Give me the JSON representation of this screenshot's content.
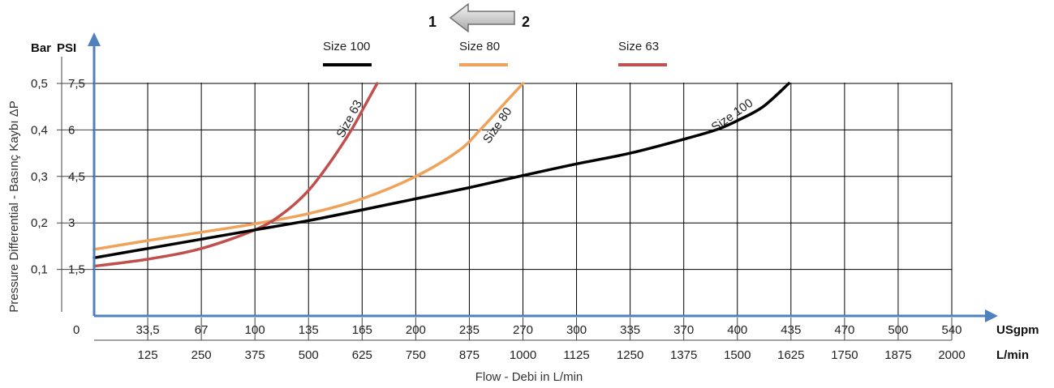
{
  "chart_data": {
    "type": "line",
    "title": "",
    "xlabel": "Flow - Debi  in L/min",
    "ylabel": "Pressure Differential - Basınç Kaybı  ΔP",
    "x_axes": {
      "primary": {
        "unit": "L/min",
        "ticks": [
          "125",
          "250",
          "375",
          "500",
          "625",
          "750",
          "875",
          "1000",
          "1125",
          "1250",
          "1375",
          "1500",
          "1625",
          "1750",
          "1875",
          "2000"
        ]
      },
      "secondary": {
        "unit": "USgpm",
        "ticks": [
          "33,5",
          "67",
          "100",
          "135",
          "165",
          "200",
          "235",
          "270",
          "300",
          "335",
          "370",
          "400",
          "435",
          "470",
          "500",
          "540"
        ]
      }
    },
    "y_axes": {
      "primary": {
        "unit": "Bar",
        "ticks": [
          "0,1",
          "0,2",
          "0,3",
          "0,4",
          "0,5"
        ]
      },
      "secondary": {
        "unit": "PSI",
        "ticks": [
          "1,5",
          "3",
          "4,5",
          "6",
          "7,5"
        ]
      }
    },
    "origin_label": "0",
    "xlim": [
      0,
      2000
    ],
    "ylim": [
      0,
      0.5
    ],
    "grid": true,
    "legend_position": "top",
    "direction_indicator": {
      "from": "1",
      "to": "2"
    },
    "series": [
      {
        "name": "Size 100",
        "curve_label": "Size 100",
        "color": "#000000",
        "x": [
          0,
          125,
          250,
          375,
          500,
          625,
          750,
          875,
          1000,
          1125,
          1250,
          1375,
          1450,
          1500,
          1560,
          1620
        ],
        "y": [
          0.125,
          0.145,
          0.165,
          0.185,
          0.205,
          0.228,
          0.252,
          0.276,
          0.302,
          0.327,
          0.35,
          0.38,
          0.4,
          0.42,
          0.45,
          0.5
        ]
      },
      {
        "name": "Size 80",
        "curve_label": "Size 80",
        "color": "#EFA35A",
        "x": [
          0,
          125,
          250,
          375,
          500,
          625,
          750,
          850,
          900,
          950,
          1000
        ],
        "y": [
          0.143,
          0.162,
          0.18,
          0.198,
          0.22,
          0.252,
          0.3,
          0.355,
          0.4,
          0.45,
          0.5
        ]
      },
      {
        "name": "Size 63",
        "curve_label": "Size 63",
        "color": "#C0504D",
        "x": [
          0,
          125,
          250,
          375,
          440,
          500,
          550,
          600,
          630,
          660
        ],
        "y": [
          0.107,
          0.122,
          0.145,
          0.185,
          0.22,
          0.27,
          0.33,
          0.4,
          0.45,
          0.5
        ]
      }
    ]
  }
}
